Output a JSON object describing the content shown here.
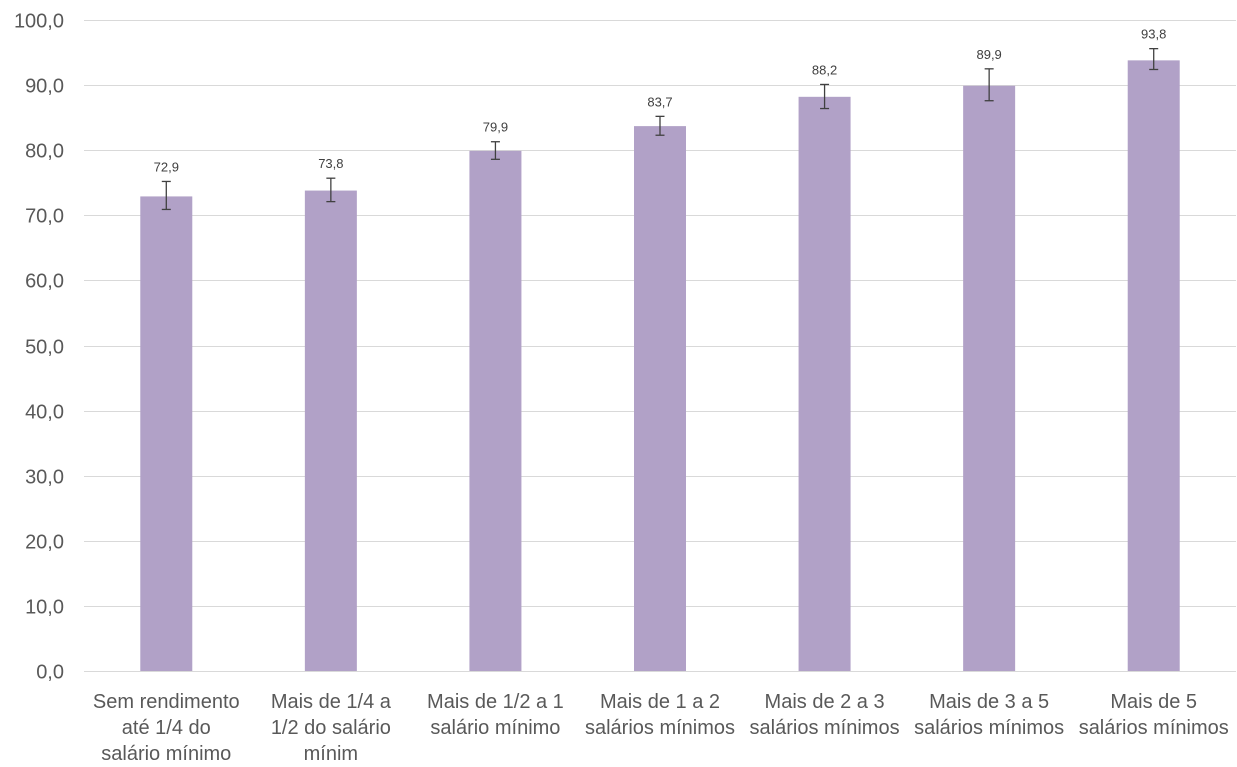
{
  "chart_data": {
    "type": "bar",
    "title": "",
    "xlabel": "",
    "ylabel": "",
    "ylim": [
      0,
      100
    ],
    "y_ticks": [
      0,
      10,
      20,
      30,
      40,
      50,
      60,
      70,
      80,
      90,
      100
    ],
    "y_tick_labels": [
      "0,0",
      "10,0",
      "20,0",
      "30,0",
      "40,0",
      "50,0",
      "60,0",
      "70,0",
      "80,0",
      "90,0",
      "100,0"
    ],
    "grid": true,
    "legend": "none",
    "categories": [
      [
        "Sem rendimento",
        "até 1/4 do",
        "salário mínimo"
      ],
      [
        "Mais de 1/4 a",
        "1/2 do salário",
        "mínim"
      ],
      [
        "Mais de 1/2 a 1",
        "salário mínimo"
      ],
      [
        "Mais de 1 a 2",
        "salários mínimos"
      ],
      [
        "Mais de 2 a 3",
        "salários mínimos"
      ],
      [
        "Mais de 3 a 5",
        "salários mínimos"
      ],
      [
        "Mais de 5",
        "salários mínimos"
      ]
    ],
    "values": [
      72.9,
      73.8,
      79.9,
      83.7,
      88.2,
      89.9,
      93.8
    ],
    "value_labels": [
      "72,9",
      "73,8",
      "79,9",
      "83,7",
      "88,2",
      "89,9",
      "93,8"
    ],
    "error_low": [
      70.9,
      72.1,
      78.6,
      82.3,
      86.4,
      87.6,
      92.4
    ],
    "error_high": [
      75.2,
      75.7,
      81.3,
      85.2,
      90.1,
      92.5,
      95.6
    ],
    "colors": {
      "bar": "#b1a1c7",
      "grid": "#d9d9d9",
      "tick_text": "#595959",
      "label_text": "#404040"
    }
  }
}
